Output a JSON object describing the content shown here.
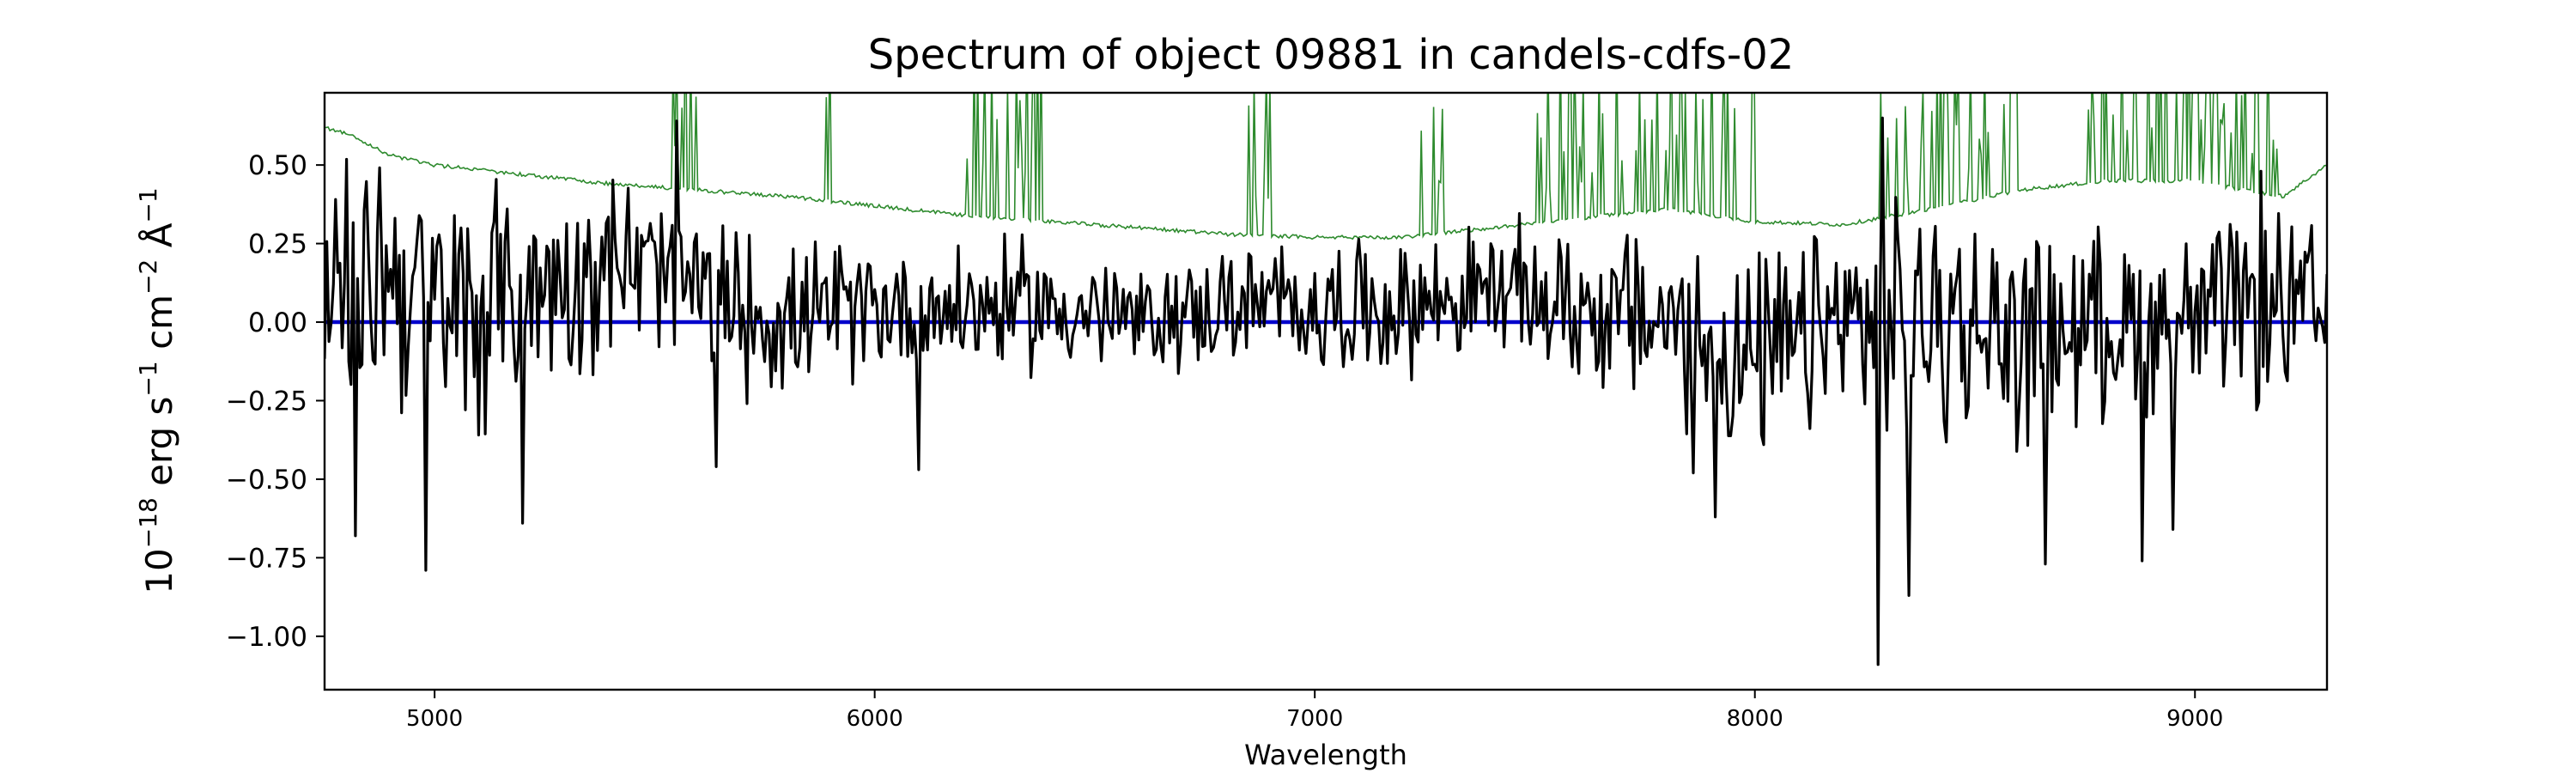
{
  "chart_data": {
    "type": "line",
    "title": "Spectrum of object 09881 in candels-cdfs-02",
    "xlabel": "Wavelength",
    "ylabel_parts": {
      "base": "10",
      "exp": "−18",
      "unit_1": " erg s",
      "unit_1_exp": "−1",
      "unit_2": " cm",
      "unit_2_exp": "−2",
      "unit_3": " Å",
      "unit_3_exp": "−1"
    },
    "xlim": [
      4750,
      9300
    ],
    "ylim": [
      -1.17,
      0.73
    ],
    "xticks": [
      5000,
      6000,
      7000,
      8000,
      9000
    ],
    "xtick_labels": [
      "5000",
      "6000",
      "7000",
      "8000",
      "9000"
    ],
    "yticks": [
      0.5,
      0.25,
      0.0,
      -0.25,
      -0.5,
      -0.75,
      -1.0
    ],
    "ytick_labels": [
      "0.50",
      "0.25",
      "0.00",
      "−0.25",
      "−0.50",
      "−0.75",
      "−1.00"
    ],
    "grid": false,
    "series_colors": {
      "flux": "#000000",
      "zero_line": "#0000cc",
      "error": "#2e8b2e"
    },
    "series": [
      {
        "key": "flux",
        "x": [
          4750,
          4900,
          5000,
          5200,
          5400,
          5600,
          5800,
          6000,
          6200,
          6400,
          6600,
          6800,
          7000,
          7200,
          7400,
          7600,
          7800,
          8000,
          8200,
          8400,
          8600,
          8800,
          9000,
          9200,
          9300
        ],
        "y": [
          0.05,
          0.2,
          0.0,
          0.1,
          0.2,
          0.1,
          0.0,
          0.05,
          0.05,
          0.05,
          0.0,
          0.05,
          0.05,
          0.05,
          0.1,
          0.05,
          0.0,
          -0.15,
          0.0,
          0.0,
          -0.05,
          0.0,
          0.0,
          0.05,
          0.0
        ],
        "noise_envelope": [
          0.45,
          0.5,
          0.55,
          0.4,
          0.35,
          0.35,
          0.28,
          0.25,
          0.25,
          0.25,
          0.2,
          0.22,
          0.25,
          0.25,
          0.25,
          0.3,
          0.35,
          0.4,
          0.4,
          0.45,
          0.4,
          0.35,
          0.35,
          0.35,
          0.35
        ],
        "extreme_points": [
          {
            "x": 4820,
            "y": -0.68
          },
          {
            "x": 4980,
            "y": -0.79
          },
          {
            "x": 5200,
            "y": -0.64
          },
          {
            "x": 5550,
            "y": 0.64
          },
          {
            "x": 5640,
            "y": -0.46
          },
          {
            "x": 6100,
            "y": -0.47
          },
          {
            "x": 7860,
            "y": -0.48
          },
          {
            "x": 7910,
            "y": -0.62
          },
          {
            "x": 8280,
            "y": -1.09
          },
          {
            "x": 8350,
            "y": -0.87
          },
          {
            "x": 8290,
            "y": 0.65
          },
          {
            "x": 8660,
            "y": -0.77
          },
          {
            "x": 8880,
            "y": -0.76
          },
          {
            "x": 8950,
            "y": -0.66
          },
          {
            "x": 9150,
            "y": 0.48
          }
        ]
      },
      {
        "key": "error",
        "x": [
          4750,
          4800,
          4900,
          5000,
          5200,
          5400,
          5600,
          5800,
          6000,
          6200,
          6400,
          6600,
          6800,
          7000,
          7200,
          7400,
          7600,
          7800,
          8000,
          8200,
          8400,
          8600,
          8800,
          9000,
          9200,
          9300
        ],
        "y": [
          0.62,
          0.6,
          0.53,
          0.5,
          0.47,
          0.44,
          0.42,
          0.4,
          0.37,
          0.34,
          0.32,
          0.3,
          0.28,
          0.27,
          0.27,
          0.3,
          0.33,
          0.36,
          0.32,
          0.31,
          0.36,
          0.42,
          0.45,
          0.45,
          0.4,
          0.5
        ],
        "spike_ranges": [
          [
            5540,
            5600
          ],
          [
            5880,
            5900
          ],
          [
            6200,
            6380
          ],
          [
            6820,
            6900
          ],
          [
            7240,
            7300
          ],
          [
            7500,
            7700
          ],
          [
            7720,
            8000
          ],
          [
            8280,
            8600
          ],
          [
            8750,
            9200
          ]
        ]
      },
      {
        "key": "zero_line",
        "x": [
          4750,
          9300
        ],
        "y": [
          0.0,
          0.0
        ]
      }
    ]
  }
}
